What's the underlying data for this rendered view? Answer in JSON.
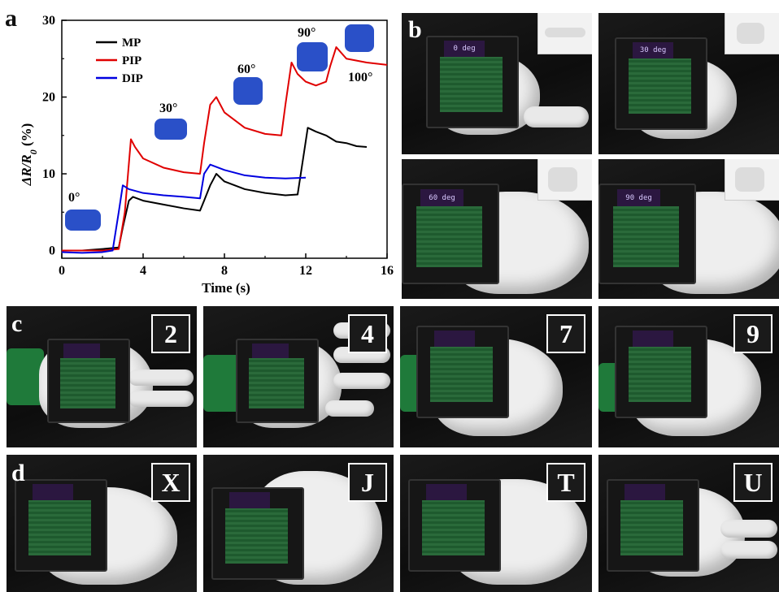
{
  "panels": {
    "a": "a",
    "b": "b",
    "c": "c",
    "d": "d"
  },
  "chart_data": {
    "type": "line",
    "xlabel": "Time (s)",
    "ylabel": "ΔR/R0 (%)",
    "ylabel_parts": {
      "main": "ΔR/R",
      "sub": "0",
      "unit": " (%)"
    },
    "xlim": [
      0,
      16
    ],
    "ylim": [
      -1,
      30
    ],
    "xticks": [
      0,
      4,
      8,
      12,
      16
    ],
    "yticks": [
      0,
      10,
      20,
      30
    ],
    "legend": "top-left",
    "series": [
      {
        "name": "MP",
        "color": "#000000",
        "x": [
          0,
          1,
          2,
          2.8,
          3.0,
          3.3,
          3.5,
          4,
          5,
          6,
          6.8,
          7.0,
          7.3,
          7.6,
          8,
          9,
          10,
          11,
          11.6,
          11.9,
          12.1,
          12.5,
          13,
          13.5,
          14,
          14.5,
          15
        ],
        "y": [
          0,
          0,
          0.2,
          0.4,
          3.0,
          6.5,
          7.0,
          6.5,
          6.0,
          5.5,
          5.2,
          6.5,
          8.5,
          10.0,
          9.0,
          8.0,
          7.5,
          7.2,
          7.3,
          12.5,
          16.0,
          15.5,
          15.0,
          14.2,
          14.0,
          13.6,
          13.5
        ]
      },
      {
        "name": "PIP",
        "color": "#e00000",
        "x": [
          0,
          1,
          2,
          2.8,
          3.1,
          3.4,
          3.6,
          4,
          5,
          6,
          6.8,
          7.0,
          7.3,
          7.6,
          8,
          9,
          10,
          10.8,
          11.0,
          11.3,
          11.6,
          12,
          12.5,
          13,
          13.2,
          13.5,
          14,
          15,
          16
        ],
        "y": [
          0,
          0,
          0,
          0.2,
          5.0,
          14.5,
          13.5,
          12.0,
          10.8,
          10.2,
          10.0,
          14.0,
          19.0,
          20.0,
          18.0,
          16.0,
          15.2,
          15.0,
          19.0,
          24.5,
          23.0,
          22.0,
          21.5,
          22.0,
          24.0,
          26.5,
          25.0,
          24.5,
          24.2
        ]
      },
      {
        "name": "DIP",
        "color": "#0000e0",
        "x": [
          0,
          1,
          2,
          2.5,
          2.8,
          3.0,
          3.3,
          4,
          5,
          6,
          6.8,
          7.0,
          7.3,
          8,
          9,
          10,
          11,
          12
        ],
        "y": [
          -0.2,
          -0.3,
          -0.2,
          0,
          5.0,
          8.5,
          8.0,
          7.5,
          7.2,
          7.0,
          6.8,
          10.0,
          11.2,
          10.5,
          9.8,
          9.5,
          9.4,
          9.5
        ]
      }
    ],
    "annotations": [
      "0°",
      "30°",
      "60°",
      "90°",
      "100°"
    ]
  },
  "panel_b": {
    "screens": [
      "0 deg",
      "30 deg",
      "60 deg",
      "90 deg"
    ]
  },
  "panel_c": {
    "badges": [
      "2",
      "4",
      "7",
      "9"
    ]
  },
  "panel_d": {
    "badges": [
      "X",
      "J",
      "T",
      "U"
    ]
  }
}
